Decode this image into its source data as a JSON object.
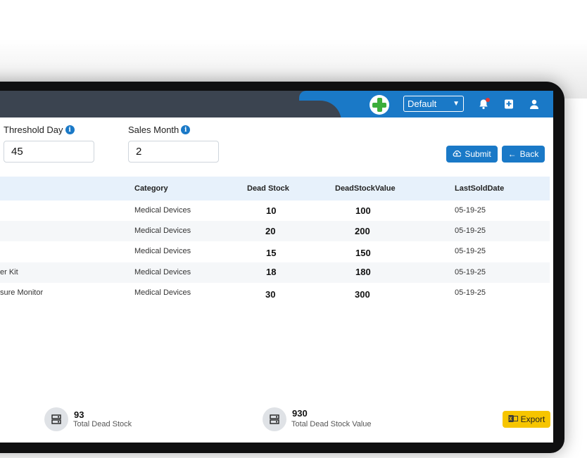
{
  "header": {
    "store_select": "Default",
    "colors": {
      "dark": "#3b4450",
      "blue": "#1a79c7"
    }
  },
  "filters": {
    "threshold_day": {
      "label": "Threshold Day",
      "value": "45"
    },
    "sales_month": {
      "label": "Sales Month",
      "value": "2"
    },
    "submit_label": "Submit",
    "back_label": "Back"
  },
  "table": {
    "columns": [
      "Category",
      "Dead Stock",
      "DeadStockValue",
      "LastSoldDate"
    ],
    "rows": [
      {
        "name": "",
        "category": "Medical Devices",
        "dead_stock": "10",
        "value": "100",
        "date": "05-19-25"
      },
      {
        "name": "",
        "category": "Medical Devices",
        "dead_stock": "20",
        "value": "200",
        "date": "05-19-25"
      },
      {
        "name": "",
        "category": "Medical Devices",
        "dead_stock": "15",
        "value": "150",
        "date": "05-19-25"
      },
      {
        "name": "er Kit",
        "category": "Medical Devices",
        "dead_stock": "18",
        "value": "180",
        "date": "05-19-25"
      },
      {
        "name": "sure Monitor",
        "category": "Medical Devices",
        "dead_stock": "30",
        "value": "300",
        "date": "05-19-25"
      }
    ]
  },
  "footer": {
    "total_dead_stock": {
      "value": "93",
      "label": "Total Dead Stock"
    },
    "total_dead_stock_value": {
      "value": "930",
      "label": "Total Dead Stock Value"
    },
    "export_label": "Export"
  }
}
